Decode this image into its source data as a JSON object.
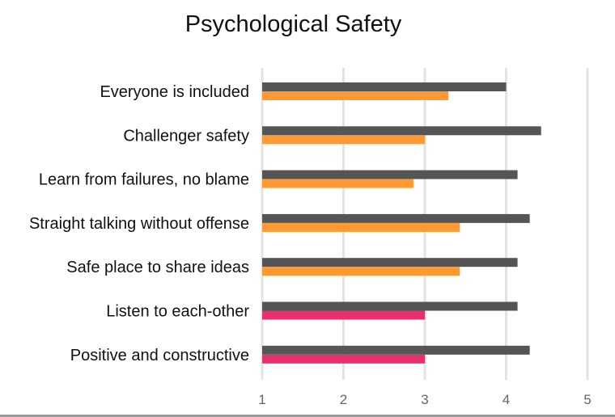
{
  "chart_data": {
    "type": "bar",
    "orientation": "horizontal",
    "title": "Psychological Safety",
    "categories": [
      "Everyone is included",
      "Challenger safety",
      "Learn from failures, no blame",
      "Straight talking without offense",
      "Safe place to share ideas",
      "Listen to each-other",
      "Positive and constructive"
    ],
    "series": [
      {
        "values": [
          4.0,
          4.43,
          4.14,
          4.29,
          4.14,
          4.14,
          4.29
        ],
        "colors": [
          "#555555",
          "#555555",
          "#555555",
          "#555555",
          "#555555",
          "#555555",
          "#555555"
        ]
      },
      {
        "values": [
          3.29,
          3.0,
          2.86,
          3.43,
          3.43,
          3.0,
          3.0
        ],
        "colors": [
          "#ff9933",
          "#ff9933",
          "#ff9933",
          "#ff9933",
          "#ff9933",
          "#e8306e",
          "#e8306e"
        ]
      }
    ],
    "xlim": [
      1,
      5
    ],
    "xticks": [
      "1",
      "2",
      "3",
      "4",
      "5"
    ],
    "xlabel": "",
    "ylabel": "",
    "grid": true,
    "legend": "none"
  }
}
